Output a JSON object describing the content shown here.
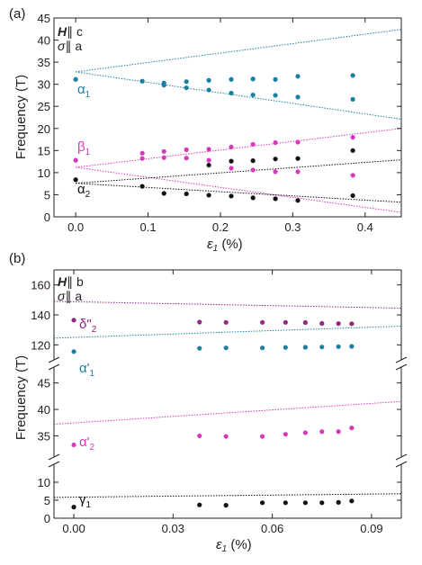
{
  "chart_data": [
    {
      "panel": "(a)",
      "type": "scatter",
      "ylabel": "Frequency (T)",
      "xlabel": "ε1 (%)",
      "xlabel_main": "ε",
      "xlabel_sub": "1",
      "xlabel_unit": " (%)",
      "xlim": [
        -0.03,
        0.45
      ],
      "ylim": [
        0,
        45
      ],
      "xticks": [
        0.0,
        0.1,
        0.2,
        0.3,
        0.4
      ],
      "xtick_labels": [
        "0.0",
        "0.1",
        "0.2",
        "0.3",
        "0.4"
      ],
      "yticks": [
        0,
        5,
        10,
        15,
        20,
        25,
        30,
        35,
        40,
        45
      ],
      "ytick_labels": [
        "0",
        "5",
        "10",
        "15",
        "20",
        "25",
        "30",
        "35",
        "40",
        "45"
      ],
      "legend_line1": "H∥ c",
      "legend_line2": "σ∥ a",
      "legend_line1_sym": "H",
      "legend_line1_rest": "∥ c",
      "legend_line2_sym": "σ",
      "legend_line2_rest": "∥ a",
      "series": [
        {
          "label": "α1",
          "label_main": "α",
          "label_sub": "1",
          "color": "#1a7fa0",
          "x": [
            0.0,
            0.092,
            0.122,
            0.122,
            0.153,
            0.153,
            0.184,
            0.184,
            0.215,
            0.215,
            0.245,
            0.245,
            0.276,
            0.276,
            0.307,
            0.307,
            0.383,
            0.383
          ],
          "y": [
            31.1,
            30.7,
            30.3,
            29.8,
            30.6,
            29.2,
            30.9,
            28.7,
            31.1,
            28.0,
            31.2,
            27.6,
            31.1,
            27.5,
            31.8,
            27.1,
            32.0,
            26.6
          ]
        },
        {
          "label": "β1",
          "label_main": "β",
          "label_sub": "1",
          "color": "#d63ab8",
          "x": [
            0.0,
            0.092,
            0.092,
            0.122,
            0.122,
            0.153,
            0.153,
            0.184,
            0.184,
            0.215,
            0.215,
            0.245,
            0.245,
            0.276,
            0.276,
            0.307,
            0.307,
            0.383,
            0.383
          ],
          "y": [
            12.8,
            14.4,
            13.2,
            14.8,
            13.4,
            15.2,
            13.3,
            15.3,
            12.8,
            15.8,
            11.0,
            16.4,
            10.6,
            16.8,
            10.2,
            16.9,
            10.2,
            18.0,
            9.4
          ]
        },
        {
          "label": "α2",
          "label_main": "α",
          "label_sub": "2",
          "color": "#111111",
          "x": [
            0.0,
            0.092,
            0.122,
            0.153,
            0.184,
            0.184,
            0.215,
            0.215,
            0.245,
            0.245,
            0.276,
            0.276,
            0.307,
            0.307,
            0.383,
            0.383
          ],
          "y": [
            8.4,
            6.9,
            5.3,
            5.2,
            11.7,
            4.9,
            12.6,
            4.7,
            12.7,
            4.3,
            13.1,
            4.1,
            13.2,
            3.7,
            15.0,
            4.8
          ]
        }
      ],
      "calc_lines": [
        {
          "color": "#1a7fa0",
          "x": [
            0.0,
            0.45
          ],
          "y": [
            32.8,
            42.4
          ]
        },
        {
          "color": "#1a7fa0",
          "x": [
            0.0,
            0.45
          ],
          "y": [
            32.8,
            22.1
          ]
        },
        {
          "color": "#d63ab8",
          "x": [
            0.0,
            0.45
          ],
          "y": [
            11.2,
            20.0
          ]
        },
        {
          "color": "#d63ab8",
          "x": [
            0.0,
            0.45
          ],
          "y": [
            11.2,
            1.0
          ]
        },
        {
          "color": "#111111",
          "x": [
            0.0,
            0.45
          ],
          "y": [
            7.6,
            12.9
          ]
        },
        {
          "color": "#111111",
          "x": [
            0.0,
            0.45
          ],
          "y": [
            7.6,
            3.3
          ]
        }
      ]
    },
    {
      "panel": "(b)",
      "type": "scatter",
      "ylabel": "Frequency (T)",
      "xlabel": "ε1 (%)",
      "xlabel_main": "ε",
      "xlabel_sub": "1",
      "xlabel_unit": " (%)",
      "xlim": [
        -0.006,
        0.099
      ],
      "xticks": [
        0.0,
        0.03,
        0.06,
        0.09
      ],
      "xtick_labels": [
        "0.00",
        "0.03",
        "0.06",
        "0.09"
      ],
      "legend_line1_sym": "H",
      "legend_line1_rest": "∥ b",
      "legend_line2_sym": "σ",
      "legend_line2_rest": "∥ a",
      "axis_breaks": "broken y axis",
      "segments": [
        {
          "ylim": [
            110,
            170
          ],
          "yticks": [
            120,
            140,
            160
          ],
          "ytick_labels": [
            "120",
            "140",
            "160"
          ]
        },
        {
          "ylim": [
            31,
            48
          ],
          "yticks": [
            35,
            40,
            45
          ],
          "ytick_labels": [
            "35",
            "40",
            "45"
          ]
        },
        {
          "ylim": [
            0,
            15
          ],
          "yticks": [
            0,
            5,
            10
          ],
          "ytick_labels": [
            "0",
            "5",
            "10"
          ]
        }
      ],
      "series": [
        {
          "label": "δ\"2",
          "label_main": "δ\"",
          "label_sub": "2",
          "color": "#8e2a80",
          "segment": 0,
          "x": [
            0.0,
            0.038,
            0.046,
            0.057,
            0.064,
            0.07,
            0.075,
            0.08,
            0.084
          ],
          "y": [
            136.5,
            135.2,
            135.0,
            135.0,
            135.0,
            134.9,
            134.3,
            134.2,
            134.1
          ]
        },
        {
          "label": "α'1",
          "label_main": "α'",
          "label_sub": "1",
          "color": "#1a7fa0",
          "segment": 0,
          "x": [
            0.0,
            0.038,
            0.046,
            0.057,
            0.064,
            0.07,
            0.075,
            0.08,
            0.084
          ],
          "y": [
            115.5,
            117.7,
            118.0,
            118.0,
            118.3,
            118.4,
            118.6,
            118.8,
            119.0
          ]
        },
        {
          "label": "α'2",
          "label_main": "α'",
          "label_sub": "2",
          "color": "#d63ab8",
          "segment": 1,
          "x": [
            0.0,
            0.038,
            0.046,
            0.057,
            0.064,
            0.07,
            0.075,
            0.08,
            0.084
          ],
          "y": [
            33.3,
            35.0,
            34.9,
            34.9,
            35.3,
            35.6,
            35.8,
            35.8,
            36.5
          ]
        },
        {
          "label": "γ1",
          "label_main": "γ",
          "label_sub": "1",
          "color": "#111111",
          "segment": 2,
          "x": [
            0.0,
            0.038,
            0.046,
            0.057,
            0.064,
            0.07,
            0.075,
            0.08,
            0.084
          ],
          "y": [
            3.1,
            3.7,
            3.6,
            4.3,
            4.3,
            4.3,
            4.3,
            4.4,
            4.8
          ]
        }
      ],
      "calc_lines": [
        {
          "color": "#8e2a80",
          "segment": 0,
          "x": [
            -0.006,
            0.099
          ],
          "y": [
            149.0,
            144.5
          ]
        },
        {
          "color": "#1a7fa0",
          "segment": 0,
          "x": [
            -0.006,
            0.099
          ],
          "y": [
            124.5,
            132.5
          ]
        },
        {
          "color": "#d63ab8",
          "segment": 1,
          "x": [
            -0.006,
            0.099
          ],
          "y": [
            37.2,
            41.5
          ]
        },
        {
          "color": "#111111",
          "segment": 2,
          "x": [
            -0.006,
            0.099
          ],
          "y": [
            5.8,
            6.8
          ]
        }
      ]
    }
  ]
}
